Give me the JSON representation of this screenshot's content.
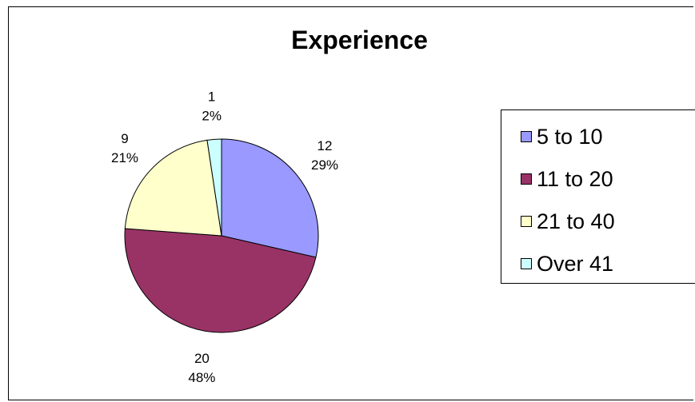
{
  "chart_data": {
    "type": "pie",
    "title": "Experience",
    "categories": [
      "5 to 10",
      "11 to 20",
      "21 to 40",
      "Over 41"
    ],
    "values": [
      12,
      20,
      9,
      1
    ],
    "percent_labels": [
      "29%",
      "48%",
      "21%",
      "2%"
    ],
    "colors": [
      "#9999FF",
      "#993366",
      "#FFFFCC",
      "#CCFFFF"
    ],
    "start_angle_deg": 0,
    "direction": "clockwise",
    "legend_position": "right"
  }
}
